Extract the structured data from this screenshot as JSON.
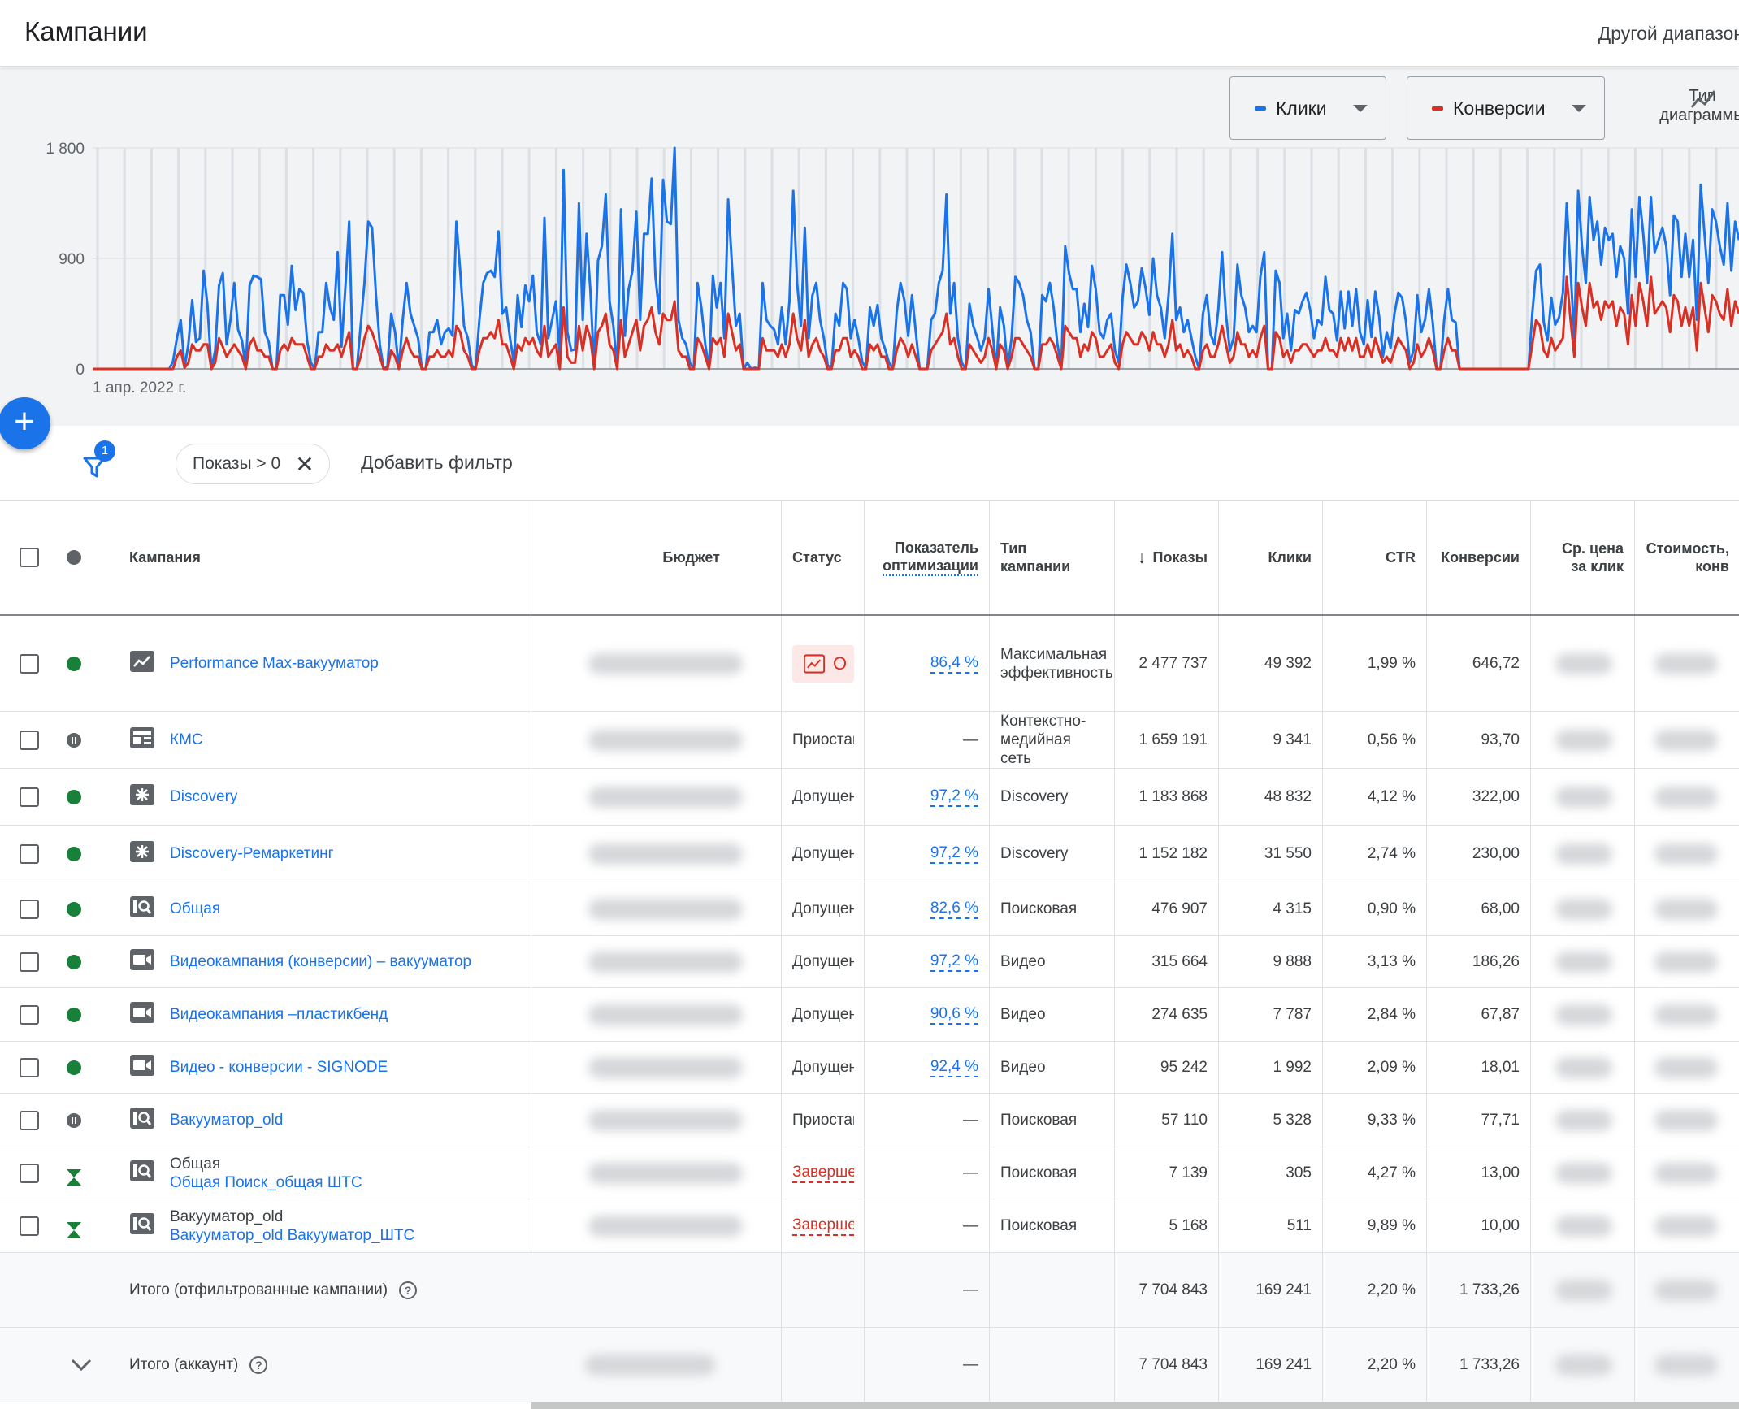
{
  "header": {
    "title": "Кампании",
    "date_range": "Другой диапазон"
  },
  "chart": {
    "metric_1": {
      "label": "Клики",
      "color": "#1a73e8"
    },
    "metric_2": {
      "label": "Конверсии",
      "color": "#d93025"
    },
    "chart_type_label_1": "Тип",
    "chart_type_label_2": "диаграммы",
    "y_ticks": [
      "1 800",
      "900",
      "0"
    ],
    "x_label": "1 апр. 2022 г."
  },
  "chart_data": {
    "type": "line",
    "x_label": "1 апр. 2022 г.",
    "ylim": [
      0,
      1800
    ],
    "series": [
      {
        "name": "Клики",
        "color": "#1a73e8",
        "values": [
          0,
          0,
          0,
          0,
          0,
          0,
          0,
          0,
          0,
          0,
          0,
          0,
          0,
          0,
          0,
          0,
          0,
          0,
          0,
          0,
          0,
          60,
          250,
          400,
          10,
          200,
          560,
          220,
          250,
          800,
          520,
          0,
          150,
          680,
          780,
          200,
          400,
          700,
          320,
          230,
          0,
          680,
          760,
          750,
          730,
          300,
          220,
          0,
          0,
          600,
          600,
          360,
          840,
          480,
          650,
          620,
          230,
          50,
          0,
          300,
          300,
          700,
          500,
          400,
          950,
          180,
          660,
          1200,
          0,
          0,
          350,
          700,
          1200,
          1150,
          600,
          200,
          0,
          20,
          450,
          300,
          0,
          400,
          700,
          450,
          350,
          250,
          0,
          0,
          300,
          300,
          400,
          200,
          300,
          330,
          270,
          1200,
          800,
          350,
          250,
          30,
          0,
          400,
          700,
          780,
          800,
          750,
          1120,
          450,
          500,
          250,
          50,
          600,
          340,
          680,
          550,
          760,
          300,
          200,
          1230,
          250,
          400,
          550,
          100,
          1620,
          300,
          150,
          160,
          1350,
          400,
          1100,
          640,
          0,
          880,
          1000,
          1420,
          550,
          350,
          0,
          1300,
          270,
          650,
          800,
          1280,
          400,
          1100,
          1100,
          1550,
          750,
          450,
          1540,
          1200,
          1180,
          1800,
          400,
          250,
          200,
          50,
          0,
          700,
          500,
          200,
          0,
          760,
          500,
          700,
          250,
          1380,
          840,
          350,
          450,
          0,
          50,
          0,
          10,
          0,
          700,
          400,
          350,
          320,
          200,
          500,
          200,
          550,
          1450,
          700,
          350,
          1150,
          250,
          600,
          700,
          400,
          250,
          30,
          10,
          450,
          350,
          700,
          650,
          250,
          400,
          250,
          60,
          0,
          500,
          350,
          520,
          250,
          160,
          50,
          0,
          460,
          700,
          560,
          270,
          600,
          300,
          0,
          0,
          0,
          400,
          450,
          700,
          800,
          1420,
          450,
          700,
          250,
          50,
          0,
          530,
          350,
          260,
          150,
          250,
          650,
          320,
          0,
          500,
          350,
          0,
          250,
          750,
          700,
          600,
          400,
          300,
          0,
          0,
          600,
          550,
          700,
          500,
          200,
          20,
          1000,
          780,
          650,
          650,
          300,
          530,
          340,
          840,
          650,
          300,
          250,
          400,
          450,
          150,
          50,
          580,
          850,
          700,
          500,
          550,
          820,
          660,
          440,
          900,
          600,
          500,
          250,
          600,
          1100,
          400,
          500,
          300,
          400,
          250,
          100,
          0,
          450,
          600,
          280,
          200,
          480,
          950,
          450,
          150,
          250,
          850,
          600,
          500,
          300,
          350,
          300,
          750,
          950,
          0,
          0,
          800,
          700,
          250,
          450,
          150,
          480,
          450,
          550,
          620,
          480,
          250,
          400,
          360,
          750,
          480,
          450,
          230,
          630,
          330,
          630,
          350,
          650,
          300,
          200,
          560,
          260,
          630,
          430,
          100,
          300,
          170,
          450,
          620,
          580,
          390,
          50,
          150,
          600,
          300,
          400,
          650,
          380,
          0,
          0,
          400,
          650,
          400,
          380,
          0,
          0,
          0,
          0,
          0,
          0,
          0,
          0,
          0,
          0,
          0,
          0,
          0,
          0,
          0,
          0,
          0,
          0,
          0,
          450,
          800,
          850,
          380,
          230,
          580,
          360,
          420,
          620,
          1350,
          800,
          250,
          1450,
          1000,
          700,
          1400,
          1050,
          1200,
          850,
          1150,
          1050,
          1100,
          750,
          1000,
          900,
          450,
          1300,
          750,
          1400,
          1100,
          700,
          1400,
          950,
          1050,
          1150,
          1000,
          600,
          1250,
          1200,
          750,
          1100,
          750,
          1050,
          400,
          1500,
          1100,
          700,
          1300,
          1200,
          1000,
          850,
          1350,
          800,
          1200,
          1050
        ]
      },
      {
        "name": "Конверсии",
        "color": "#d93025",
        "values": [
          0,
          0,
          0,
          0,
          0,
          0,
          0,
          0,
          0,
          0,
          0,
          0,
          0,
          0,
          0,
          0,
          0,
          0,
          0,
          0,
          0,
          0,
          100,
          150,
          10,
          50,
          200,
          150,
          150,
          200,
          200,
          0,
          50,
          250,
          180,
          100,
          150,
          200,
          150,
          100,
          0,
          200,
          250,
          150,
          150,
          100,
          100,
          0,
          0,
          150,
          200,
          150,
          250,
          200,
          200,
          200,
          100,
          0,
          0,
          100,
          100,
          200,
          150,
          150,
          200,
          100,
          200,
          300,
          0,
          0,
          100,
          250,
          350,
          300,
          200,
          100,
          0,
          0,
          150,
          100,
          0,
          150,
          250,
          150,
          100,
          100,
          0,
          0,
          100,
          100,
          150,
          100,
          100,
          150,
          100,
          350,
          300,
          150,
          100,
          0,
          0,
          150,
          250,
          250,
          300,
          250,
          400,
          200,
          200,
          100,
          0,
          200,
          150,
          250,
          200,
          250,
          150,
          100,
          350,
          100,
          150,
          200,
          0,
          500,
          100,
          50,
          50,
          350,
          150,
          350,
          250,
          0,
          300,
          350,
          450,
          200,
          150,
          0,
          400,
          100,
          200,
          300,
          400,
          150,
          350,
          400,
          500,
          300,
          200,
          450,
          400,
          400,
          550,
          150,
          100,
          100,
          0,
          0,
          250,
          200,
          100,
          0,
          250,
          200,
          250,
          100,
          450,
          300,
          150,
          200,
          0,
          0,
          0,
          0,
          0,
          250,
          150,
          150,
          150,
          100,
          200,
          100,
          200,
          450,
          250,
          150,
          400,
          100,
          200,
          250,
          150,
          100,
          0,
          0,
          150,
          150,
          250,
          250,
          100,
          150,
          100,
          0,
          0,
          200,
          150,
          200,
          100,
          100,
          0,
          0,
          150,
          250,
          200,
          100,
          200,
          100,
          0,
          0,
          0,
          150,
          200,
          250,
          300,
          450,
          200,
          250,
          100,
          0,
          0,
          200,
          150,
          100,
          50,
          100,
          250,
          150,
          0,
          200,
          150,
          0,
          100,
          250,
          250,
          200,
          150,
          100,
          0,
          0,
          200,
          200,
          250,
          200,
          100,
          0,
          350,
          300,
          250,
          250,
          100,
          200,
          150,
          300,
          250,
          100,
          100,
          150,
          200,
          50,
          0,
          200,
          300,
          250,
          200,
          200,
          300,
          250,
          150,
          300,
          200,
          200,
          100,
          200,
          400,
          150,
          200,
          100,
          150,
          100,
          0,
          0,
          150,
          200,
          100,
          100,
          200,
          350,
          200,
          50,
          100,
          300,
          200,
          200,
          100,
          150,
          100,
          250,
          350,
          0,
          0,
          300,
          250,
          100,
          150,
          50,
          150,
          150,
          200,
          200,
          150,
          100,
          150,
          150,
          250,
          150,
          150,
          100,
          250,
          150,
          250,
          150,
          250,
          100,
          100,
          200,
          100,
          250,
          150,
          50,
          100,
          50,
          150,
          250,
          200,
          150,
          0,
          50,
          200,
          100,
          150,
          250,
          150,
          0,
          0,
          150,
          250,
          150,
          150,
          0,
          0,
          0,
          0,
          0,
          0,
          0,
          0,
          0,
          0,
          0,
          0,
          0,
          0,
          0,
          0,
          0,
          0,
          0,
          200,
          400,
          350,
          150,
          100,
          250,
          150,
          200,
          250,
          750,
          400,
          100,
          700,
          500,
          350,
          700,
          500,
          550,
          400,
          550,
          500,
          550,
          350,
          500,
          450,
          200,
          600,
          350,
          700,
          550,
          350,
          750,
          450,
          500,
          550,
          500,
          300,
          600,
          550,
          350,
          500,
          350,
          500,
          150,
          700,
          500,
          300,
          600,
          550,
          450,
          400,
          650,
          350,
          550,
          450
        ]
      }
    ]
  },
  "filters": {
    "count": "1",
    "chip_label": "Показы > 0",
    "add_filter": "Добавить фильтр"
  },
  "table": {
    "headers": {
      "campaign": "Кампания",
      "budget": "Бюджет",
      "status": "Статус",
      "opt_1": "Показатель",
      "opt_2": "оптимизации",
      "type_1": "Тип",
      "type_2": "кампании",
      "impressions": "Показы",
      "clicks": "Клики",
      "ctr": "CTR",
      "conversions": "Конверсии",
      "cpc_1": "Ср. цена",
      "cpc_2": "за клик",
      "cost_1": "Стоимость,",
      "cost_2": "конв"
    },
    "rows": [
      {
        "status_dot": "green",
        "type_icon": "pmax-icon",
        "line1": "",
        "name": "Performance Max-вакууматор",
        "status": "О",
        "opt": "86,4 %",
        "ctype_1": "Максимальная",
        "ctype_2": "эффективность",
        "ctype_3": "",
        "impressions": "2 477 737",
        "clicks": "49 392",
        "ctr": "1,99 %",
        "conversions": "646,72"
      },
      {
        "status_dot": "paused",
        "type_icon": "display-icon",
        "line1": "",
        "name": "КМС",
        "status": "Приостан",
        "opt": "—",
        "ctype_1": "Контекстно-",
        "ctype_2": "медийная",
        "ctype_3": "сеть",
        "impressions": "1 659 191",
        "clicks": "9 341",
        "ctr": "0,56 %",
        "conversions": "93,70"
      },
      {
        "status_dot": "green",
        "type_icon": "discovery-icon",
        "line1": "",
        "name": "Discovery",
        "status": "Допущена",
        "opt": "97,2 %",
        "ctype_1": "Discovery",
        "ctype_2": "",
        "ctype_3": "",
        "impressions": "1 183 868",
        "clicks": "48 832",
        "ctr": "4,12 %",
        "conversions": "322,00"
      },
      {
        "status_dot": "green",
        "type_icon": "discovery-icon",
        "line1": "",
        "name": "Discovery-Ремаркетинг",
        "status": "Допущена",
        "opt": "97,2 %",
        "ctype_1": "Discovery",
        "ctype_2": "",
        "ctype_3": "",
        "impressions": "1 152 182",
        "clicks": "31 550",
        "ctr": "2,74 %",
        "conversions": "230,00"
      },
      {
        "status_dot": "green",
        "type_icon": "search-icon",
        "line1": "",
        "name": "Общая",
        "status": "Допущена",
        "opt": "82,6 %",
        "ctype_1": "Поисковая",
        "ctype_2": "",
        "ctype_3": "",
        "impressions": "476 907",
        "clicks": "4 315",
        "ctr": "0,90 %",
        "conversions": "68,00"
      },
      {
        "status_dot": "green",
        "type_icon": "video-icon",
        "line1": "",
        "name": "Видеокампания (конверсии) – вакууматор",
        "status": "Допущена",
        "opt": "97,2 %",
        "ctype_1": "Видео",
        "ctype_2": "",
        "ctype_3": "",
        "impressions": "315 664",
        "clicks": "9 888",
        "ctr": "3,13 %",
        "conversions": "186,26"
      },
      {
        "status_dot": "green",
        "type_icon": "video-icon",
        "line1": "",
        "name": "Видеокампания –пластикбенд",
        "status": "Допущена",
        "opt": "90,6 %",
        "ctype_1": "Видео",
        "ctype_2": "",
        "ctype_3": "",
        "impressions": "274 635",
        "clicks": "7 787",
        "ctr": "2,84 %",
        "conversions": "67,87"
      },
      {
        "status_dot": "green",
        "type_icon": "video-icon",
        "line1": "",
        "name": "Видео - конверсии - SIGNODE",
        "status": "Допущена",
        "opt": "92,4 %",
        "ctype_1": "Видео",
        "ctype_2": "",
        "ctype_3": "",
        "impressions": "95 242",
        "clicks": "1 992",
        "ctr": "2,09 %",
        "conversions": "18,01"
      },
      {
        "status_dot": "paused",
        "type_icon": "search-icon",
        "line1": "",
        "name": "Вакууматор_old",
        "status": "Приостан",
        "opt": "—",
        "ctype_1": "Поисковая",
        "ctype_2": "",
        "ctype_3": "",
        "impressions": "57 110",
        "clicks": "5 328",
        "ctr": "9,33 %",
        "conversions": "77,71"
      },
      {
        "status_dot": "ended",
        "type_icon": "search-icon",
        "line1": "Общая",
        "name": "Общая Поиск_общая ШТС",
        "status": "Завершена",
        "opt": "—",
        "ctype_1": "Поисковая",
        "ctype_2": "",
        "ctype_3": "",
        "impressions": "7 139",
        "clicks": "305",
        "ctr": "4,27 %",
        "conversions": "13,00"
      },
      {
        "status_dot": "ended",
        "type_icon": "search-icon",
        "line1": "Вакууматор_old",
        "name": "Вакууматор_old Вакууматор_ШТС",
        "status": "Завершена",
        "opt": "—",
        "ctype_1": "Поисковая",
        "ctype_2": "",
        "ctype_3": "",
        "impressions": "5 168",
        "clicks": "511",
        "ctr": "9,89 %",
        "conversions": "10,00"
      }
    ],
    "totals": [
      {
        "label": "Итого (отфильтрованные кампании)",
        "opt": "—",
        "impressions": "7 704 843",
        "clicks": "169 241",
        "ctr": "2,20 %",
        "conversions": "1 733,26"
      },
      {
        "label": "Итого (аккаунт)",
        "opt": "—",
        "impressions": "7 704 843",
        "clicks": "169 241",
        "ctr": "2,20 %",
        "conversions": "1 733,26"
      }
    ]
  }
}
